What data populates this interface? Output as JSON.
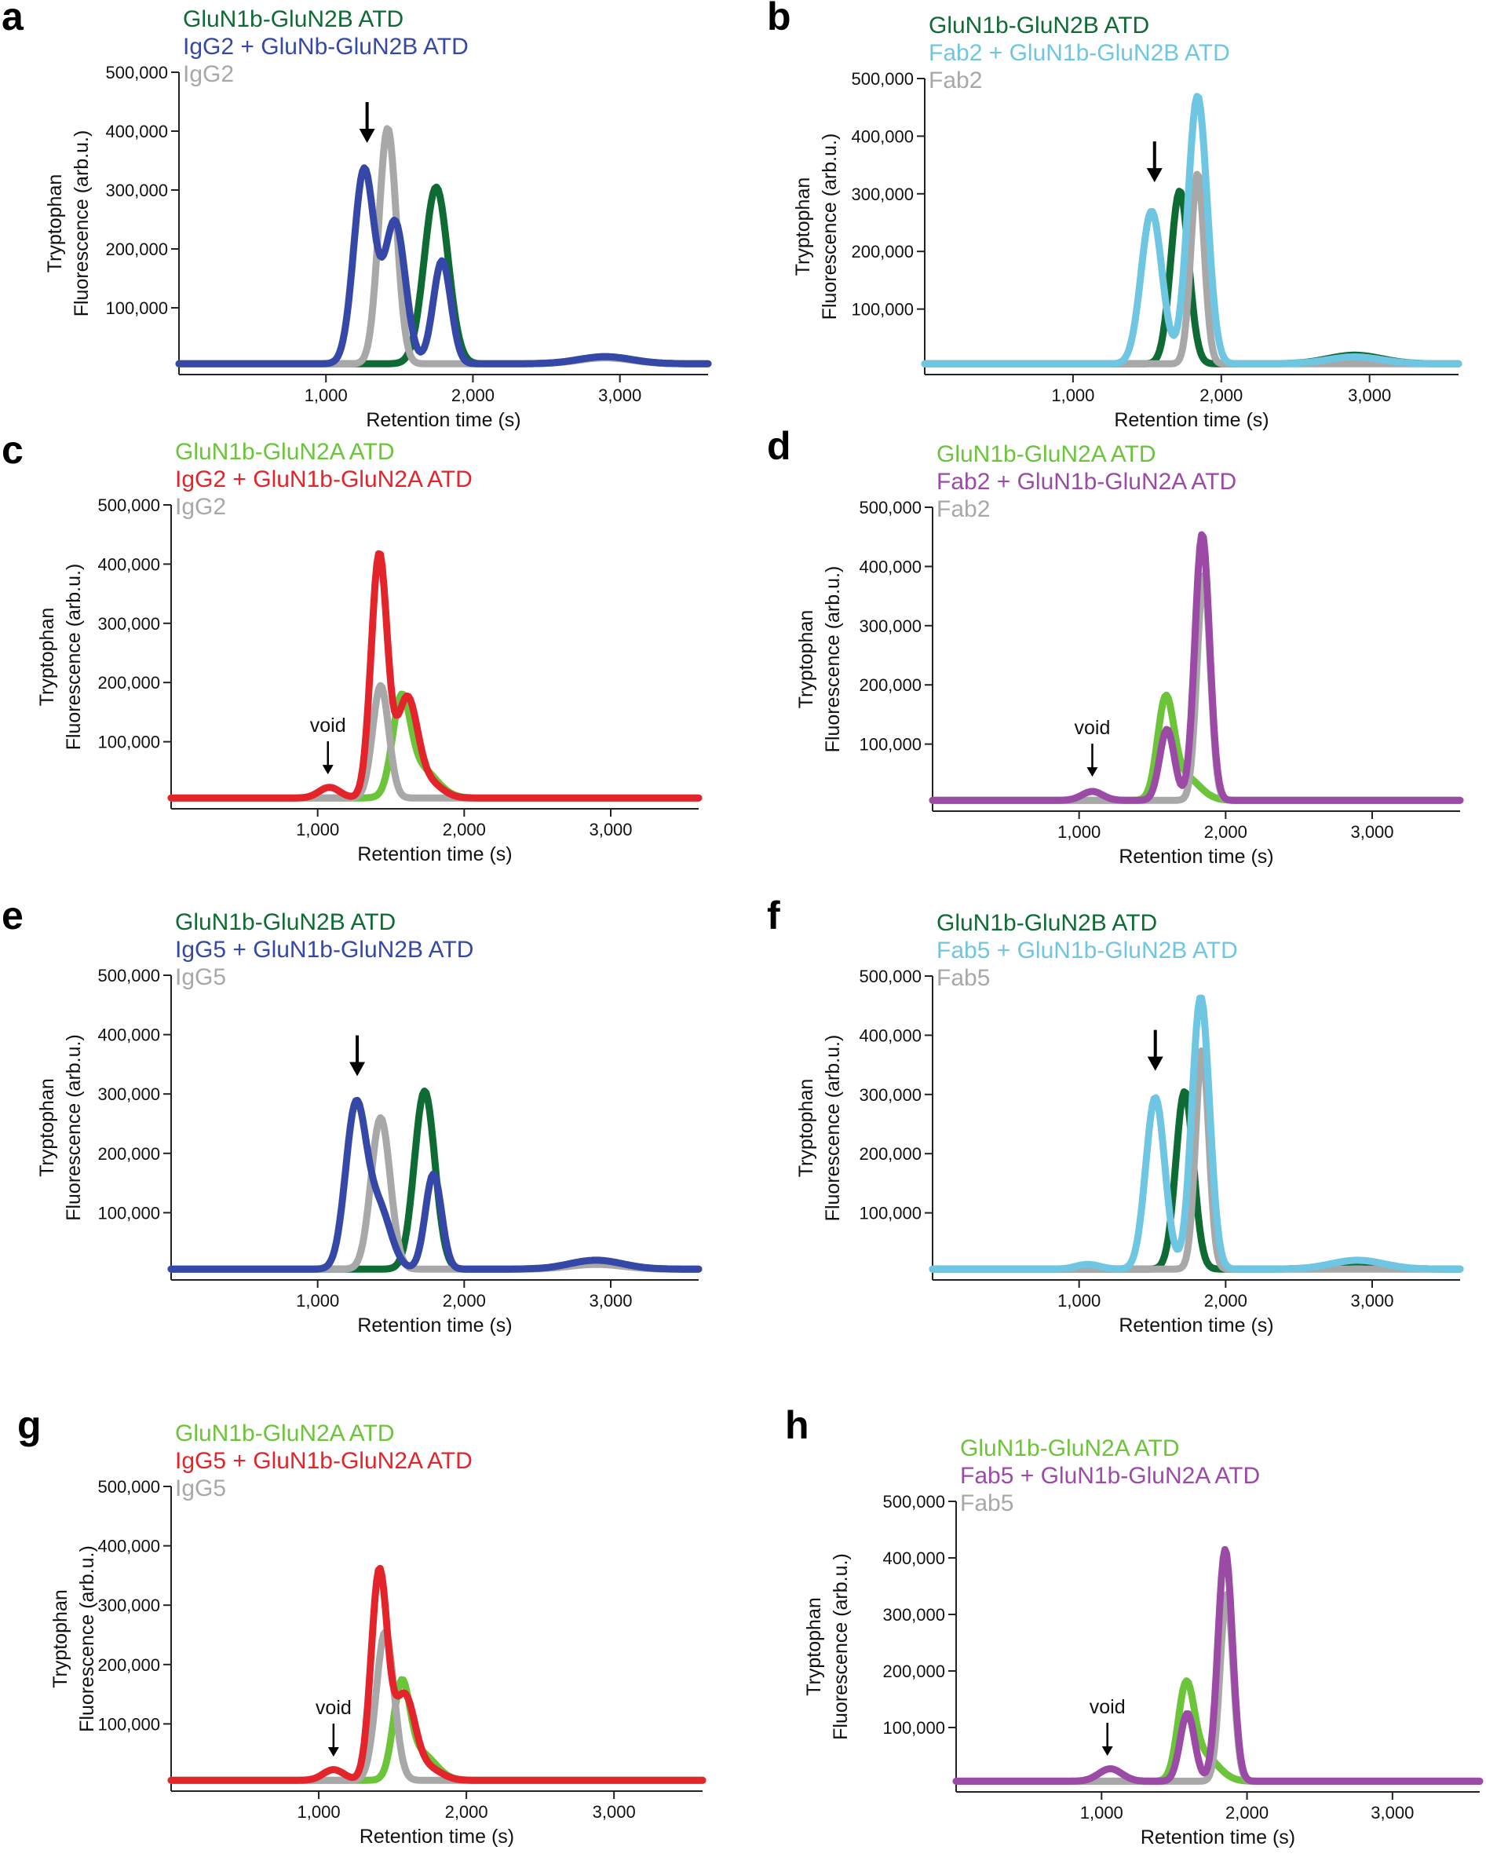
{
  "colors": {
    "dark_green": "#0e6b33",
    "light_green": "#6cc43a",
    "blue": "#3548a8",
    "cyan": "#6ec6e2",
    "red": "#e3242b",
    "purple": "#9b4aa6",
    "gray": "#a8a8a8",
    "axis": "#222222"
  },
  "chart_data": [
    {
      "panel": "a",
      "type": "line",
      "ylabel_line1": "Tryptophan",
      "ylabel_line2": "Fluorescence (arb.u.)",
      "xlabel": "Retention time (s)",
      "xlim": [
        0,
        3600
      ],
      "ylim": [
        0,
        500000
      ],
      "x_ticks": [
        1000,
        2000,
        3000
      ],
      "x_tick_labels": [
        "1,000",
        "2,000",
        "3,000"
      ],
      "y_ticks": [
        100000,
        200000,
        300000,
        400000,
        500000
      ],
      "y_tick_labels": [
        "100,000",
        "200,000",
        "300,000",
        "400,000",
        "500,000"
      ],
      "legend": [
        "GluN1b-GluN2B ATD",
        "IgG2 + GluNb-GluN2B ATD",
        "IgG2"
      ],
      "annotation": {
        "type": "arrow",
        "x": 1280,
        "y_tip": 380000,
        "text": ""
      },
      "series": [
        {
          "name": "GluN1b-GluN2B ATD",
          "color": "dark_green",
          "baseline": 5000,
          "peaks": [
            [
              1750,
              300000,
              80
            ],
            [
              2900,
              12000,
              180
            ]
          ]
        },
        {
          "name": "IgG2",
          "color": "gray",
          "baseline": 5000,
          "peaks": [
            [
              1420,
              400000,
              60
            ],
            [
              2900,
              10000,
              180
            ]
          ]
        },
        {
          "name": "IgG2 + GluNb-GluN2B ATD",
          "color": "blue",
          "baseline": 5000,
          "peaks": [
            [
              1260,
              330000,
              70
            ],
            [
              1470,
              240000,
              70
            ],
            [
              1790,
              175000,
              60
            ],
            [
              2900,
              12000,
              180
            ]
          ]
        }
      ]
    },
    {
      "panel": "b",
      "type": "line",
      "ylabel_line1": "Tryptophan",
      "ylabel_line2": "Fluorescence (arb.u.)",
      "xlabel": "Retention time (s)",
      "xlim": [
        0,
        3600
      ],
      "ylim": [
        0,
        500000
      ],
      "x_ticks": [
        1000,
        2000,
        3000
      ],
      "x_tick_labels": [
        "1,000",
        "2,000",
        "3,000"
      ],
      "y_ticks": [
        100000,
        200000,
        300000,
        400000,
        500000
      ],
      "y_tick_labels": [
        "100,000",
        "200,000",
        "300,000",
        "400,000",
        "500,000"
      ],
      "legend": [
        "GluN1b-GluN2B ATD",
        "Fab2 + GluN1b-GluN2B ATD",
        "Fab2"
      ],
      "annotation": {
        "type": "arrow",
        "x": 1550,
        "y_tip": 320000,
        "text": ""
      },
      "series": [
        {
          "name": "GluN1b-GluN2B ATD",
          "color": "dark_green",
          "baseline": 5000,
          "peaks": [
            [
              1720,
              300000,
              60
            ],
            [
              2900,
              15000,
              180
            ]
          ]
        },
        {
          "name": "Fab2",
          "color": "gray",
          "baseline": 5000,
          "peaks": [
            [
              1840,
              330000,
              45
            ]
          ]
        },
        {
          "name": "Fab2 + GluN1b-GluN2B ATD",
          "color": "cyan",
          "baseline": 5000,
          "peaks": [
            [
              1530,
              265000,
              70
            ],
            [
              1840,
              465000,
              65
            ],
            [
              2900,
              12000,
              180
            ]
          ]
        }
      ]
    },
    {
      "panel": "c",
      "type": "line",
      "ylabel_line1": "Tryptophan",
      "ylabel_line2": "Fluorescence (arb.u.)",
      "xlabel": "Retention time (s)",
      "xlim": [
        0,
        3600
      ],
      "ylim": [
        0,
        500000
      ],
      "x_ticks": [
        1000,
        2000,
        3000
      ],
      "x_tick_labels": [
        "1,000",
        "2,000",
        "3,000"
      ],
      "y_ticks": [
        100000,
        200000,
        300000,
        400000,
        500000
      ],
      "y_tick_labels": [
        "100,000",
        "200,000",
        "300,000",
        "400,000",
        "500,000"
      ],
      "legend": [
        "GluN1b-GluN2A ATD",
        "IgG2 + GluN1b-GluN2A ATD",
        "IgG2"
      ],
      "annotation": {
        "type": "arrow",
        "x": 1070,
        "y_tip": 45000,
        "text": "void"
      },
      "series": [
        {
          "name": "GluN1b-GluN2A ATD",
          "color": "light_green",
          "baseline": 5000,
          "peaks": [
            [
              1570,
              150000,
              60
            ],
            [
              1700,
              50000,
              110
            ]
          ]
        },
        {
          "name": "IgG2",
          "color": "gray",
          "baseline": 5000,
          "peaks": [
            [
              1430,
              190000,
              55
            ]
          ]
        },
        {
          "name": "IgG2 + GluN1b-GluN2A ATD",
          "color": "red",
          "baseline": 5000,
          "peaks": [
            [
              1080,
              18000,
              70
            ],
            [
              1420,
              410000,
              55
            ],
            [
              1610,
              165000,
              70
            ],
            [
              1760,
              25000,
              90
            ]
          ]
        }
      ]
    },
    {
      "panel": "d",
      "type": "line",
      "ylabel_line1": "Tryptophan",
      "ylabel_line2": "Fluorescence (arb.u.)",
      "xlabel": "Retention time (s)",
      "xlim": [
        0,
        3600
      ],
      "ylim": [
        0,
        500000
      ],
      "x_ticks": [
        1000,
        2000,
        3000
      ],
      "x_tick_labels": [
        "1,000",
        "2,000",
        "3,000"
      ],
      "y_ticks": [
        100000,
        200000,
        300000,
        400000,
        500000
      ],
      "y_tick_labels": [
        "100,000",
        "200,000",
        "300,000",
        "400,000",
        "500,000"
      ],
      "legend": [
        "GluN1b-GluN2A ATD",
        "Fab2 + GluN1b-GluN2A ATD",
        "Fab2"
      ],
      "annotation": {
        "type": "arrow",
        "x": 1090,
        "y_tip": 45000,
        "text": "void"
      },
      "series": [
        {
          "name": "GluN1b-GluN2A ATD",
          "color": "light_green",
          "baseline": 5000,
          "peaks": [
            [
              1590,
              160000,
              55
            ],
            [
              1720,
              40000,
              100
            ]
          ]
        },
        {
          "name": "Fab2",
          "color": "gray",
          "baseline": 5000,
          "peaks": [
            [
              1850,
              380000,
              45
            ]
          ]
        },
        {
          "name": "Fab2 + GluN1b-GluN2A ATD",
          "color": "purple",
          "baseline": 5000,
          "peaks": [
            [
              1090,
              15000,
              70
            ],
            [
              1600,
              120000,
              50
            ],
            [
              1840,
              450000,
              50
            ]
          ]
        }
      ]
    },
    {
      "panel": "e",
      "type": "line",
      "ylabel_line1": "Tryptophan",
      "ylabel_line2": "Fluorescence (arb.u.)",
      "xlabel": "Retention time (s)",
      "xlim": [
        0,
        3600
      ],
      "ylim": [
        0,
        500000
      ],
      "x_ticks": [
        1000,
        2000,
        3000
      ],
      "x_tick_labels": [
        "1,000",
        "2,000",
        "3,000"
      ],
      "y_ticks": [
        100000,
        200000,
        300000,
        400000,
        500000
      ],
      "y_tick_labels": [
        "100,000",
        "200,000",
        "300,000",
        "400,000",
        "500,000"
      ],
      "legend": [
        "GluN1b-GluN2B ATD",
        "IgG5 + GluN1b-GluN2B ATD",
        "IgG5"
      ],
      "annotation": {
        "type": "arrow",
        "x": 1270,
        "y_tip": 330000,
        "text": ""
      },
      "series": [
        {
          "name": "GluN1b-GluN2B ATD",
          "color": "dark_green",
          "baseline": 5000,
          "peaks": [
            [
              1730,
              300000,
              70
            ],
            [
              2900,
              12000,
              180
            ]
          ]
        },
        {
          "name": "IgG5",
          "color": "gray",
          "baseline": 5000,
          "peaks": [
            [
              1430,
              255000,
              65
            ],
            [
              2900,
              8000,
              180
            ]
          ]
        },
        {
          "name": "IgG5 + GluN1b-GluN2B ATD",
          "color": "blue",
          "baseline": 5000,
          "peaks": [
            [
              1260,
              270000,
              70
            ],
            [
              1420,
              100000,
              80
            ],
            [
              1790,
              160000,
              55
            ],
            [
              2900,
              15000,
              180
            ]
          ]
        }
      ]
    },
    {
      "panel": "f",
      "type": "line",
      "ylabel_line1": "Tryptophan",
      "ylabel_line2": "Fluorescence (arb.u.)",
      "xlabel": "Retention time (s)",
      "xlim": [
        0,
        3600
      ],
      "ylim": [
        0,
        500000
      ],
      "x_ticks": [
        1000,
        2000,
        3000
      ],
      "x_tick_labels": [
        "1,000",
        "2,000",
        "3,000"
      ],
      "y_ticks": [
        100000,
        200000,
        300000,
        400000,
        500000
      ],
      "y_tick_labels": [
        "100,000",
        "200,000",
        "300,000",
        "400,000",
        "500,000"
      ],
      "legend": [
        "GluN1b-GluN2B ATD",
        "Fab5 + GluN1b-GluN2B ATD",
        "Fab5"
      ],
      "annotation": {
        "type": "arrow",
        "x": 1520,
        "y_tip": 340000,
        "text": ""
      },
      "series": [
        {
          "name": "GluN1b-GluN2B ATD",
          "color": "dark_green",
          "baseline": 5000,
          "peaks": [
            [
              1720,
              300000,
              60
            ],
            [
              2900,
              12000,
              180
            ]
          ]
        },
        {
          "name": "Fab5",
          "color": "gray",
          "baseline": 5000,
          "peaks": [
            [
              1840,
              370000,
              45
            ]
          ]
        },
        {
          "name": "Fab5 + GluN1b-GluN2B ATD",
          "color": "cyan",
          "baseline": 5000,
          "peaks": [
            [
              1520,
              290000,
              65
            ],
            [
              1830,
              460000,
              60
            ],
            [
              1060,
              8000,
              80
            ],
            [
              2900,
              15000,
              180
            ]
          ]
        }
      ]
    },
    {
      "panel": "g",
      "type": "line",
      "ylabel_line1": "Tryptophan",
      "ylabel_line2": "Fluorescence (arb.u.)",
      "xlabel": "Retention time (s)",
      "xlim": [
        0,
        3600
      ],
      "ylim": [
        0,
        500000
      ],
      "x_ticks": [
        1000,
        2000,
        3000
      ],
      "x_tick_labels": [
        "1,000",
        "2,000",
        "3,000"
      ],
      "y_ticks": [
        100000,
        200000,
        300000,
        400000,
        500000
      ],
      "y_tick_labels": [
        "100,000",
        "200,000",
        "300,000",
        "400,000",
        "500,000"
      ],
      "legend": [
        "GluN1b-GluN2A ATD",
        "IgG5 + GluN1b-GluN2A ATD",
        "IgG5"
      ],
      "annotation": {
        "type": "arrow",
        "x": 1100,
        "y_tip": 45000,
        "text": "void"
      },
      "series": [
        {
          "name": "GluN1b-GluN2A ATD",
          "color": "light_green",
          "baseline": 5000,
          "peaks": [
            [
              1560,
              150000,
              55
            ],
            [
              1690,
              45000,
              100
            ]
          ]
        },
        {
          "name": "IgG5",
          "color": "gray",
          "baseline": 5000,
          "peaks": [
            [
              1450,
              250000,
              60
            ]
          ]
        },
        {
          "name": "IgG5 + GluN1b-GluN2A ATD",
          "color": "red",
          "baseline": 5000,
          "peaks": [
            [
              1100,
              18000,
              70
            ],
            [
              1410,
              350000,
              55
            ],
            [
              1580,
              140000,
              70
            ],
            [
              1740,
              20000,
              90
            ]
          ]
        }
      ]
    },
    {
      "panel": "h",
      "type": "line",
      "ylabel_line1": "Tryptophan",
      "ylabel_line2": "Fluorescence (arb.u.)",
      "xlabel": "Retention time (s)",
      "xlim": [
        0,
        3600
      ],
      "ylim": [
        0,
        500000
      ],
      "x_ticks": [
        1000,
        2000,
        3000
      ],
      "x_tick_labels": [
        "1,000",
        "2,000",
        "3,000"
      ],
      "y_ticks": [
        100000,
        200000,
        300000,
        400000,
        500000
      ],
      "y_tick_labels": [
        "100,000",
        "200,000",
        "300,000",
        "400,000",
        "500,000"
      ],
      "legend": [
        "GluN1b-GluN2A ATD",
        "Fab5 + GluN1b-GluN2A ATD",
        "Fab5"
      ],
      "annotation": {
        "type": "arrow",
        "x": 1040,
        "y_tip": 50000,
        "text": "void"
      },
      "series": [
        {
          "name": "GluN1b-GluN2A ATD",
          "color": "light_green",
          "baseline": 5000,
          "peaks": [
            [
              1580,
              155000,
              55
            ],
            [
              1700,
              45000,
              100
            ]
          ]
        },
        {
          "name": "Fab5",
          "color": "gray",
          "baseline": 5000,
          "peaks": [
            [
              1860,
              330000,
              45
            ]
          ]
        },
        {
          "name": "Fab5 + GluN1b-GluN2A ATD",
          "color": "purple",
          "baseline": 5000,
          "peaks": [
            [
              1060,
              22000,
              80
            ],
            [
              1590,
              120000,
              50
            ],
            [
              1850,
              410000,
              50
            ]
          ]
        }
      ]
    }
  ]
}
